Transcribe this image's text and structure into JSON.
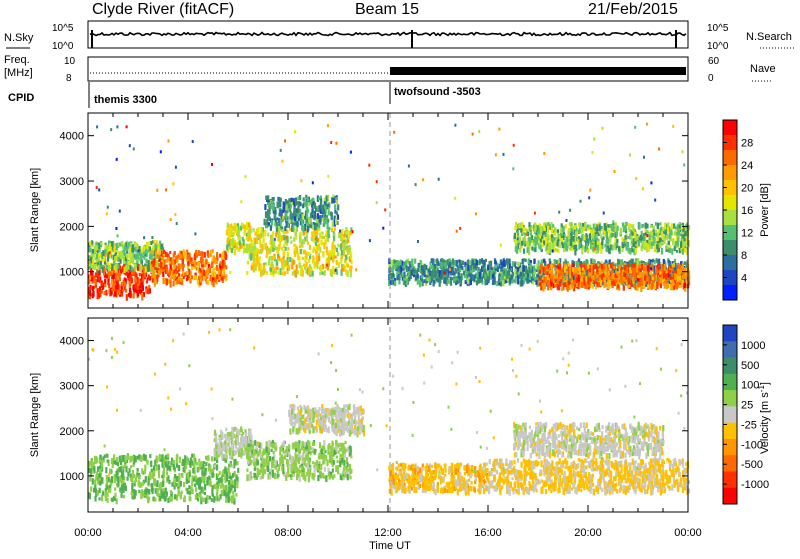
{
  "header": {
    "title": "Clyde River (fitACF)",
    "beam": "Beam 15",
    "date": "21/Feb/2015"
  },
  "strip_nsky": {
    "left_label": "N.Sky",
    "left_ticks": [
      "10^5",
      "10^0"
    ],
    "right_label": "N.Search",
    "right_ticks": [
      "10^5",
      "10^0"
    ]
  },
  "strip_freq": {
    "left_label_line1": "Freq.",
    "left_label_line2": "[MHz]",
    "left_ticks": [
      "10",
      "8"
    ],
    "right_label": "Nave",
    "right_ticks": [
      "60",
      "0"
    ]
  },
  "cpid": {
    "label": "CPID",
    "modes": [
      {
        "name": "themis 3300",
        "start_hour": 0
      },
      {
        "name": "twofsound -3503",
        "start_hour": 12
      }
    ]
  },
  "x_axis": {
    "title": "Time UT",
    "ticks": [
      "00:00",
      "04:00",
      "08:00",
      "12:00",
      "16:00",
      "20:00",
      "00:00"
    ],
    "range_hours": [
      0,
      24
    ]
  },
  "power_panel": {
    "ylabel": "Slant Range [km]",
    "yticks": [
      "1000",
      "2000",
      "3000",
      "4000"
    ],
    "colorbar": {
      "title": "Power [dB]",
      "ticks": [
        "28",
        "24",
        "20",
        "16",
        "12",
        "8",
        "4"
      ],
      "colors": [
        "#ff0000",
        "#ff3000",
        "#ff6a00",
        "#ff9a00",
        "#ffc200",
        "#e4e600",
        "#a8e040",
        "#55c070",
        "#3c8e6a",
        "#2a6fa0",
        "#1e46c0",
        "#0020ff"
      ]
    }
  },
  "velocity_panel": {
    "ylabel": "Slant Range [km]",
    "yticks": [
      "1000",
      "2000",
      "3000",
      "4000"
    ],
    "colorbar": {
      "title": "Velocity [m s",
      "title_sup": "-1",
      "title_end": "]",
      "ticks": [
        "1000",
        "500",
        "100",
        "25",
        "-25",
        "-100",
        "-500",
        "-1000"
      ],
      "colors": [
        "#1e46c0",
        "#3f6db0",
        "#3c8e6a",
        "#4fb050",
        "#90d048",
        "#c8c8c8",
        "#ffc000",
        "#ff9600",
        "#ff6a00",
        "#ff3000",
        "#ff0000"
      ]
    }
  },
  "chart_data": [
    {
      "type": "heatmap",
      "title": "Power",
      "xlabel": "Time UT",
      "ylabel": "Slant Range [km]",
      "xlim": [
        0,
        24
      ],
      "ylim": [
        200,
        4500
      ],
      "colorbar_label": "Power [dB]",
      "clim": [
        0,
        30
      ],
      "echo_regions": [
        {
          "t0": 0.0,
          "t1": 2.5,
          "r0": 500,
          "r1": 1200,
          "level": 28
        },
        {
          "t0": 0.0,
          "t1": 3.0,
          "r0": 1100,
          "r1": 1700,
          "level": 12
        },
        {
          "t0": 2.5,
          "t1": 5.5,
          "r0": 800,
          "r1": 1500,
          "level": 24
        },
        {
          "t0": 5.5,
          "t1": 6.5,
          "r0": 1500,
          "r1": 2100,
          "level": 16
        },
        {
          "t0": 6.3,
          "t1": 10.5,
          "r0": 1000,
          "r1": 2000,
          "level": 16
        },
        {
          "t0": 7.0,
          "t1": 10.0,
          "r0": 2000,
          "r1": 2700,
          "level": 8
        },
        {
          "t0": 12.0,
          "t1": 24.0,
          "r0": 800,
          "r1": 1300,
          "level": 8
        },
        {
          "t0": 18.0,
          "t1": 24.0,
          "r0": 700,
          "r1": 1200,
          "level": 24
        },
        {
          "t0": 17.0,
          "t1": 24.0,
          "r0": 1500,
          "r1": 2100,
          "level": 12
        }
      ]
    },
    {
      "type": "heatmap",
      "title": "Velocity",
      "xlabel": "Time UT",
      "ylabel": "Slant Range [km]",
      "xlim": [
        0,
        24
      ],
      "ylim": [
        200,
        4500
      ],
      "colorbar_label": "Velocity [m s-1]",
      "clim": [
        -1000,
        1000
      ],
      "echo_regions": [
        {
          "t0": 0.0,
          "t1": 6.0,
          "r0": 500,
          "r1": 1500,
          "level": 300
        },
        {
          "t0": 5.0,
          "t1": 6.5,
          "r0": 1500,
          "r1": 2100,
          "level": 80
        },
        {
          "t0": 6.3,
          "t1": 10.5,
          "r0": 1000,
          "r1": 1800,
          "level": 200
        },
        {
          "t0": 8.0,
          "t1": 11.0,
          "r0": 2000,
          "r1": 2600,
          "level": 0
        },
        {
          "t0": 12.0,
          "t1": 16.0,
          "r0": 700,
          "r1": 1300,
          "level": -200
        },
        {
          "t0": 16.0,
          "t1": 24.0,
          "r0": 700,
          "r1": 1400,
          "level": -150
        },
        {
          "t0": 17.0,
          "t1": 23.0,
          "r0": 1500,
          "r1": 2200,
          "level": 0
        }
      ]
    }
  ]
}
